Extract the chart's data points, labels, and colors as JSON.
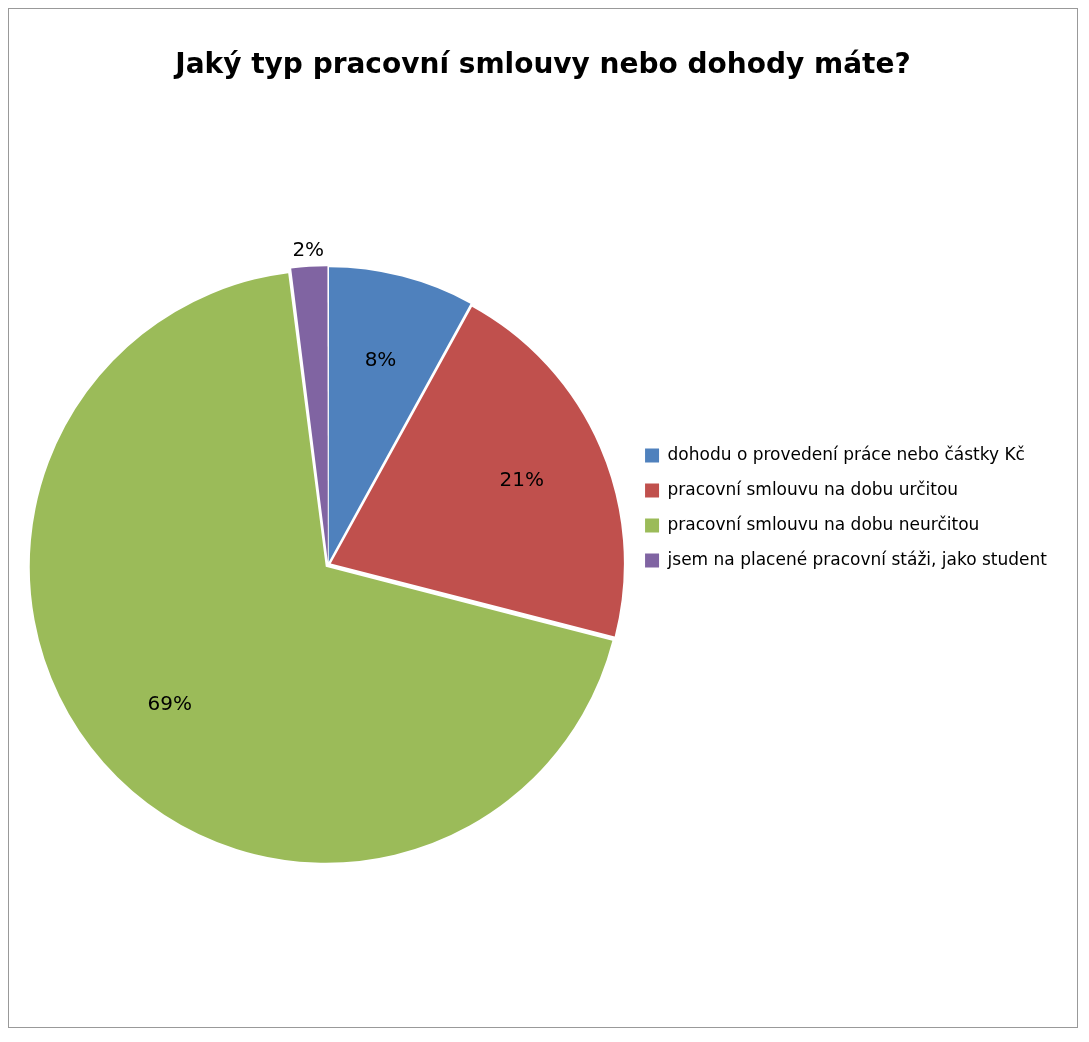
{
  "chart_data": {
    "type": "pie",
    "title": "Jaký typ pracovní smlouvy nebo dohody máte?",
    "categories": [
      "dohodu o provedení práce nebo částky Kč",
      "pracovní smlouvu na dobu určitou",
      "pracovní smlouvu na dobu neurčitou",
      "jsem na placené pracovní stáži, jako student"
    ],
    "values": [
      8,
      21,
      69,
      2
    ],
    "value_labels": [
      "8%",
      "21%",
      "69%",
      "2%"
    ],
    "colors": [
      "#4f81bd",
      "#c0504d",
      "#9bbb59",
      "#8064a2"
    ],
    "legend": "right"
  }
}
